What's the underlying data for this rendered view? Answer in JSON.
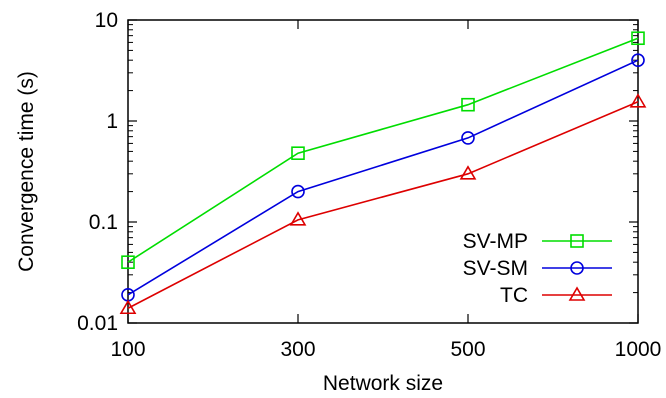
{
  "chart_data": {
    "type": "line",
    "title": "",
    "xlabel": "Network size",
    "ylabel": "Convergence time (s)",
    "y_scale": "log",
    "ylim": [
      0.01,
      10
    ],
    "grid": false,
    "legend_position": "bottom-right",
    "categories": [
      "100",
      "300",
      "500",
      "1000"
    ],
    "y_ticks": [
      "0.01",
      "0.1",
      "1",
      "10"
    ],
    "series": [
      {
        "name": "SV-MP",
        "color": "#00dd00",
        "marker": "square",
        "values": [
          0.04,
          0.48,
          1.45,
          6.6
        ]
      },
      {
        "name": "SV-SM",
        "color": "#0000dd",
        "marker": "circle",
        "values": [
          0.019,
          0.2,
          0.68,
          4.0
        ]
      },
      {
        "name": "TC",
        "color": "#dd0000",
        "marker": "triangle",
        "values": [
          0.014,
          0.105,
          0.3,
          1.55
        ]
      }
    ]
  }
}
